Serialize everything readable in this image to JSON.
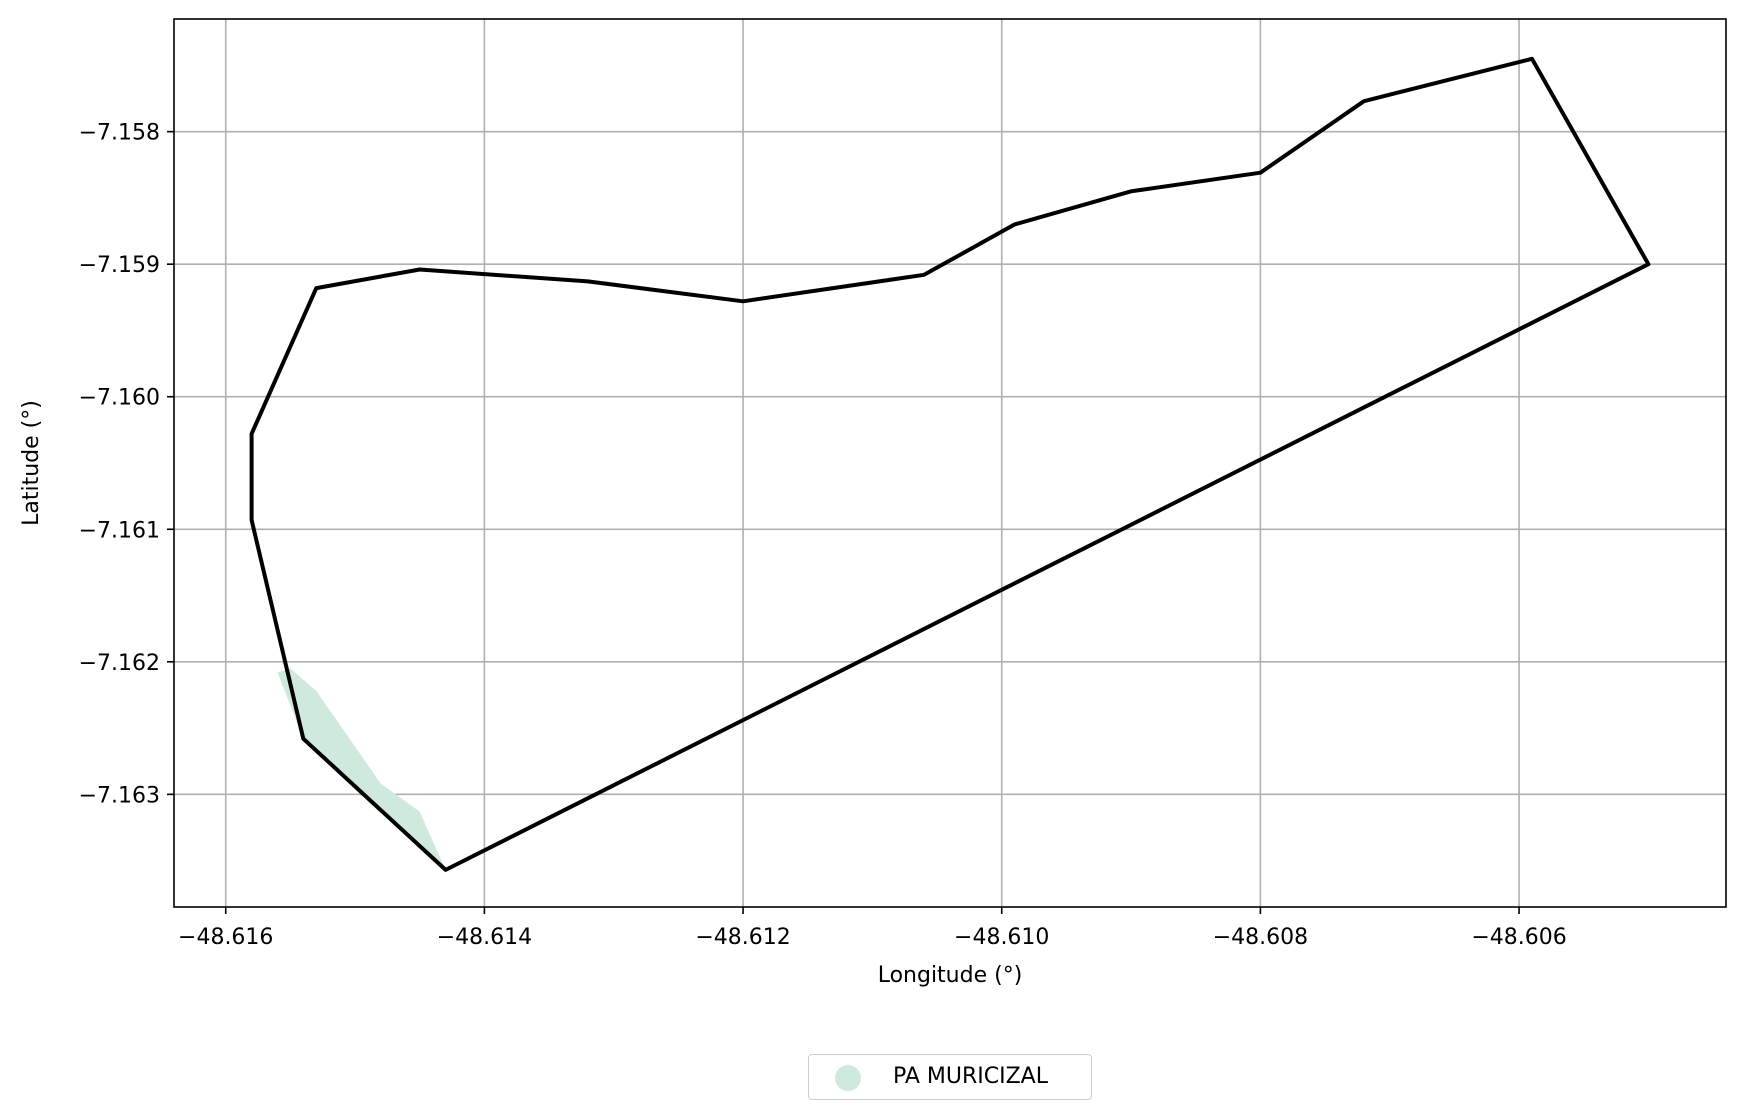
{
  "chart_data": {
    "type": "map",
    "xlabel": "Longitude (°)",
    "ylabel": "Latitude (°)",
    "xlim": [
      -48.6164,
      -48.6044
    ],
    "ylim": [
      -7.16385,
      -7.15715
    ],
    "x_ticks": [
      -48.616,
      -48.614,
      -48.612,
      -48.61,
      -48.608,
      -48.606
    ],
    "y_ticks": [
      -7.158,
      -7.159,
      -7.16,
      -7.161,
      -7.162,
      -7.163
    ],
    "grid": true,
    "boundary": {
      "color": "#000000",
      "points": [
        [
          -48.6153,
          -7.15918
        ],
        [
          -48.6145,
          -7.15904
        ],
        [
          -48.6132,
          -7.15913
        ],
        [
          -48.612,
          -7.15928
        ],
        [
          -48.6106,
          -7.15908
        ],
        [
          -48.6099,
          -7.1587
        ],
        [
          -48.609,
          -7.15845
        ],
        [
          -48.608,
          -7.15831
        ],
        [
          -48.6072,
          -7.15777
        ],
        [
          -48.6059,
          -7.15745
        ],
        [
          -48.605,
          -7.159
        ],
        [
          -48.6143,
          -7.16357
        ],
        [
          -48.6154,
          -7.16258
        ],
        [
          -48.6158,
          -7.16093
        ],
        [
          -48.6158,
          -7.16028
        ]
      ]
    },
    "area": {
      "name": "PA MURICIZAL",
      "color": "#cfeadc",
      "points": [
        [
          -48.6155,
          -7.16205
        ],
        [
          -48.6153,
          -7.16222
        ],
        [
          -48.6148,
          -7.16292
        ],
        [
          -48.6145,
          -7.16313
        ],
        [
          -48.6143,
          -7.16357
        ],
        [
          -48.6154,
          -7.16258
        ],
        [
          -48.6156,
          -7.16208
        ]
      ]
    },
    "legend": {
      "placement": "bottom-center"
    }
  }
}
